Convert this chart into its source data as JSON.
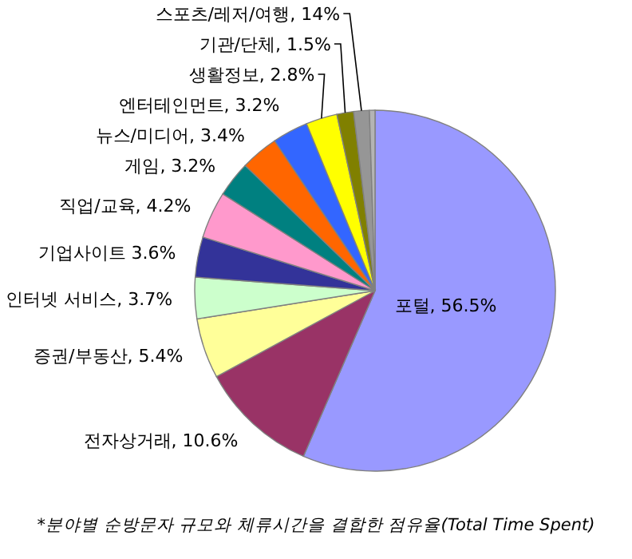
{
  "chart_data": {
    "type": "pie",
    "categories": [
      "포털, 56.5%",
      "전자상거래, 10.6%",
      "증권/부동산, 5.4%",
      "인터넷 서비스, 3.7%",
      "기업사이트 3.6%",
      "직업/교육, 4.2%",
      "게임, 3.2%",
      "뉴스/미디어, 3.4%",
      "엔터테인먼트, 3.2%",
      "생활정보, 2.8%",
      "기관/단체, 1.5%",
      "스포츠/레저/여행, 14%",
      null
    ],
    "values": [
      56.5,
      10.6,
      5.4,
      3.7,
      3.6,
      4.2,
      3.2,
      3.4,
      3.2,
      2.8,
      1.5,
      1.4,
      0.5
    ],
    "colors": [
      "#9999ff",
      "#993366",
      "#ffff99",
      "#ccffcc",
      "#333399",
      "#ff99cc",
      "#008080",
      "#ff6600",
      "#3366ff",
      "#ffff00",
      "#808000",
      "#969696",
      "#b4b4b4"
    ],
    "annotations": [
      "*분야별 순방문자 규모와 체류시간을 결합한 점유율(Total Time Spent)"
    ]
  }
}
